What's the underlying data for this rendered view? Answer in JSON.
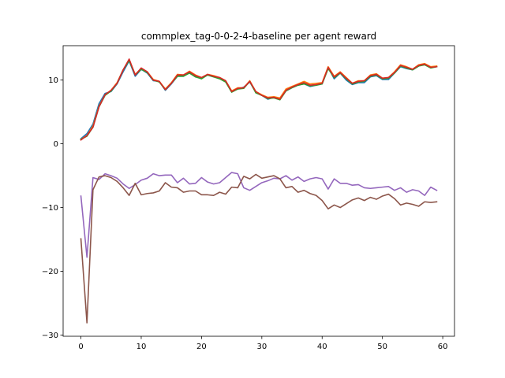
{
  "chart_data": {
    "type": "line",
    "title": "commplex_tag-0-0-2-4-baseline per agent reward",
    "xlabel": "",
    "ylabel": "",
    "xlim": [
      -2.95,
      61.95
    ],
    "ylim": [
      -30.2,
      15.4
    ],
    "xticks": [
      0,
      10,
      20,
      30,
      40,
      50,
      60
    ],
    "yticks": [
      -30,
      -20,
      -10,
      0,
      10
    ],
    "ytick_labels": [
      "−30",
      "−20",
      "−10",
      "0",
      "10"
    ],
    "grid": false,
    "legend": "none",
    "x": [
      0,
      1,
      2,
      3,
      4,
      5,
      6,
      7,
      8,
      9,
      10,
      11,
      12,
      13,
      14,
      15,
      16,
      17,
      18,
      19,
      20,
      21,
      22,
      23,
      24,
      25,
      26,
      27,
      28,
      29,
      30,
      31,
      32,
      33,
      34,
      35,
      36,
      37,
      38,
      39,
      40,
      41,
      42,
      43,
      44,
      45,
      46,
      47,
      48,
      49,
      50,
      51,
      52,
      53,
      54,
      55,
      56,
      57,
      58,
      59
    ],
    "series": [
      {
        "color": "#1f77b4",
        "values": [
          0.8,
          1.6,
          3.1,
          6.3,
          7.9,
          8.2,
          9.4,
          11.3,
          13.0,
          10.6,
          11.7,
          11.1,
          9.9,
          9.8,
          8.4,
          9.4,
          10.6,
          10.6,
          11.2,
          10.5,
          10.3,
          10.8,
          10.5,
          10.3,
          9.8,
          8.2,
          8.6,
          8.9,
          9.7,
          8.1,
          7.6,
          7.0,
          7.3,
          7.0,
          8.3,
          8.8,
          9.2,
          9.4,
          9.0,
          9.2,
          9.4,
          12.0,
          10.2,
          11.1,
          10.0,
          9.3,
          9.6,
          9.6,
          10.5,
          10.7,
          10.1,
          10.1,
          11.1,
          12.1,
          11.8,
          11.6,
          12.2,
          12.5,
          12.0,
          12.1
        ]
      },
      {
        "color": "#ff7f0e",
        "values": [
          0.7,
          1.3,
          2.8,
          5.9,
          7.7,
          8.4,
          9.6,
          11.6,
          13.2,
          10.9,
          11.8,
          11.3,
          10.1,
          9.8,
          8.6,
          9.6,
          10.9,
          10.8,
          11.4,
          10.8,
          10.4,
          10.9,
          10.7,
          10.4,
          9.9,
          8.3,
          8.8,
          8.8,
          9.9,
          8.2,
          7.7,
          7.3,
          7.4,
          7.2,
          8.6,
          9.0,
          9.4,
          9.8,
          9.4,
          9.5,
          9.6,
          12.1,
          10.6,
          11.3,
          10.4,
          9.5,
          9.9,
          9.9,
          10.8,
          11.0,
          10.3,
          10.4,
          11.3,
          12.4,
          12.1,
          11.7,
          12.4,
          12.6,
          12.1,
          12.2
        ]
      },
      {
        "color": "#2ca02c",
        "values": [
          0.7,
          1.2,
          2.6,
          5.8,
          7.6,
          8.3,
          9.5,
          11.6,
          13.1,
          10.8,
          11.7,
          11.2,
          10.0,
          9.7,
          8.5,
          9.5,
          10.6,
          10.6,
          11.1,
          10.5,
          10.2,
          10.8,
          10.5,
          10.2,
          9.7,
          8.1,
          8.6,
          8.7,
          9.8,
          8.0,
          7.6,
          7.1,
          7.2,
          6.9,
          8.3,
          8.8,
          9.2,
          9.4,
          9.1,
          9.2,
          9.4,
          11.8,
          10.4,
          11.1,
          10.2,
          9.4,
          9.7,
          9.8,
          10.6,
          10.8,
          10.2,
          10.3,
          11.1,
          12.2,
          11.9,
          11.6,
          12.2,
          12.4,
          11.9,
          12.1
        ]
      },
      {
        "color": "#d62728",
        "values": [
          0.6,
          1.3,
          2.6,
          5.8,
          7.7,
          8.4,
          9.5,
          11.6,
          13.3,
          10.8,
          11.9,
          11.3,
          10.0,
          9.8,
          8.5,
          9.5,
          10.8,
          10.8,
          11.3,
          10.7,
          10.4,
          10.9,
          10.6,
          10.4,
          9.9,
          8.2,
          8.7,
          8.8,
          9.8,
          8.2,
          7.6,
          7.2,
          7.3,
          7.0,
          8.4,
          8.9,
          9.3,
          9.6,
          9.2,
          9.3,
          9.5,
          12.0,
          10.5,
          11.2,
          10.3,
          9.5,
          9.8,
          9.9,
          10.7,
          10.9,
          10.3,
          10.4,
          11.2,
          12.3,
          12.0,
          11.7,
          12.3,
          12.5,
          12.0,
          12.1
        ]
      },
      {
        "color": "#9467bd",
        "values": [
          -8.2,
          -17.8,
          -5.3,
          -5.6,
          -4.7,
          -5.0,
          -5.4,
          -6.3,
          -7.0,
          -6.4,
          -5.7,
          -5.4,
          -4.7,
          -5.0,
          -4.9,
          -4.9,
          -6.1,
          -5.4,
          -6.3,
          -6.2,
          -5.3,
          -6.0,
          -6.3,
          -6.1,
          -5.3,
          -4.5,
          -4.7,
          -6.9,
          -7.3,
          -6.7,
          -6.1,
          -5.8,
          -5.4,
          -5.5,
          -5.0,
          -5.7,
          -5.2,
          -5.9,
          -5.5,
          -5.3,
          -5.5,
          -7.1,
          -5.5,
          -6.2,
          -6.2,
          -6.5,
          -6.4,
          -6.9,
          -7.0,
          -6.9,
          -6.8,
          -6.7,
          -7.3,
          -6.9,
          -7.6,
          -7.2,
          -7.4,
          -8.1,
          -6.8,
          -7.3
        ]
      },
      {
        "color": "#8c564b",
        "values": [
          -14.9,
          -28.1,
          -7.2,
          -5.2,
          -5.0,
          -5.3,
          -5.9,
          -6.9,
          -8.1,
          -6.2,
          -8.0,
          -7.8,
          -7.7,
          -7.4,
          -6.1,
          -6.8,
          -6.9,
          -7.6,
          -7.4,
          -7.4,
          -8.0,
          -8.0,
          -8.1,
          -7.6,
          -7.9,
          -6.8,
          -6.9,
          -5.1,
          -5.5,
          -4.8,
          -5.4,
          -5.2,
          -5.0,
          -5.5,
          -6.9,
          -6.7,
          -7.6,
          -7.3,
          -7.8,
          -8.1,
          -8.9,
          -10.2,
          -9.6,
          -10.0,
          -9.4,
          -8.8,
          -8.5,
          -8.9,
          -8.4,
          -8.7,
          -8.2,
          -7.9,
          -8.6,
          -9.6,
          -9.3,
          -9.5,
          -9.8,
          -9.1,
          -9.2,
          -9.1
        ]
      }
    ]
  }
}
